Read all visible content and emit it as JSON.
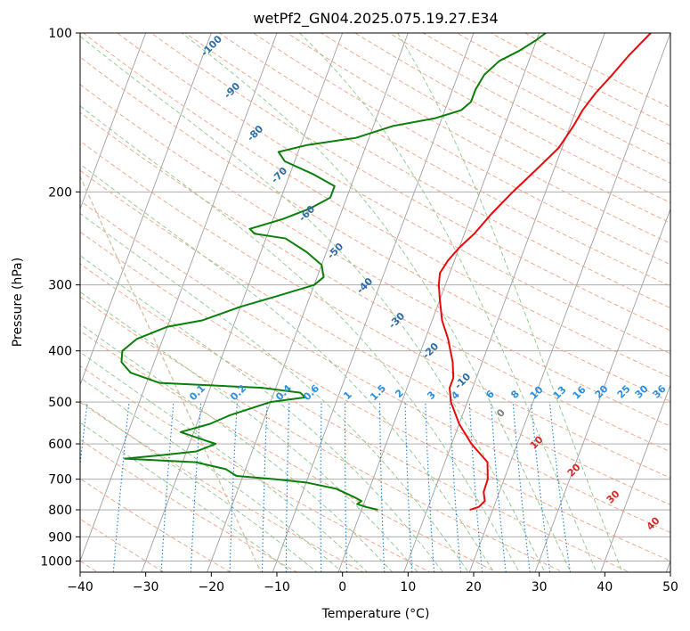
{
  "chart_data": {
    "type": "line",
    "diagram": "skew-t log-p",
    "title": "wetPf2_GN04.2025.075.19.27.E34",
    "xlabel": "Temperature (°C)",
    "ylabel": "Pressure (hPa)",
    "xlim": [
      -40,
      50
    ],
    "ylim": [
      1050,
      100
    ],
    "y_scale": "log",
    "grid": true,
    "x_ticks": [
      -40,
      -30,
      -20,
      -10,
      0,
      10,
      20,
      30,
      40,
      50
    ],
    "y_ticks": [
      1000,
      900,
      800,
      700,
      600,
      500,
      400,
      300,
      200,
      100
    ],
    "colors": {
      "temperature": "#e8090a",
      "dewpoint": "#0a7f0a",
      "isotherm": "#a0a0a0",
      "dry_adiabat": "#f4a080",
      "moist_adiabat": "#8cc88c",
      "mixing_ratio": "#1e7fd8",
      "mixing_label": "#2b8fe0",
      "dry_label": "#2b6ea8",
      "moist_label_pos": "#d42a2a",
      "moist_label_zero": "#808080",
      "brown_curve": "#d9c2a8"
    },
    "annotations": {
      "dry_adiabats": [
        "-100",
        "-90",
        "-80",
        "-70",
        "-60",
        "-50",
        "-40",
        "-30",
        "-20",
        "-10"
      ],
      "moist_adiabats": [
        "0",
        "10",
        "20",
        "30",
        "40"
      ],
      "mixing_ratios": [
        "0.1",
        "0.2",
        "0.4",
        "0.6",
        "1",
        "1.5",
        "2",
        "3",
        "4",
        "6",
        "8",
        "10",
        "13",
        "16",
        "20",
        "25",
        "30",
        "36"
      ]
    },
    "series": [
      {
        "key": "temperature",
        "points": [
          [
            800,
            16.5
          ],
          [
            790,
            17.7
          ],
          [
            770,
            18.3
          ],
          [
            740,
            17.6
          ],
          [
            700,
            17.5
          ],
          [
            650,
            16.5
          ],
          [
            600,
            13.0
          ],
          [
            550,
            10.0
          ],
          [
            500,
            7.5
          ],
          [
            470,
            6.5
          ],
          [
            450,
            6.5
          ],
          [
            420,
            5.5
          ],
          [
            380,
            3.5
          ],
          [
            350,
            1.5
          ],
          [
            320,
            0.0
          ],
          [
            300,
            -1.0
          ],
          [
            285,
            -1.5
          ],
          [
            270,
            -1.0
          ],
          [
            255,
            0.0
          ],
          [
            240,
            1.5
          ],
          [
            220,
            3.0
          ],
          [
            200,
            5.0
          ],
          [
            180,
            7.5
          ],
          [
            165,
            9.5
          ],
          [
            150,
            10.5
          ],
          [
            140,
            11.0
          ],
          [
            130,
            12.0
          ],
          [
            120,
            13.5
          ],
          [
            110,
            15.0
          ],
          [
            100,
            17.0
          ]
        ]
      },
      {
        "key": "dewpoint",
        "points": [
          [
            800,
            2.5
          ],
          [
            790,
            0.5
          ],
          [
            780,
            -1.0
          ],
          [
            770,
            -0.5
          ],
          [
            760,
            -1.5
          ],
          [
            730,
            -5.0
          ],
          [
            710,
            -10.0
          ],
          [
            700,
            -15.0
          ],
          [
            690,
            -21.0
          ],
          [
            670,
            -23.0
          ],
          [
            650,
            -28.0
          ],
          [
            640,
            -39.0
          ],
          [
            630,
            -33.5
          ],
          [
            620,
            -28.5
          ],
          [
            600,
            -26.0
          ],
          [
            590,
            -28.0
          ],
          [
            570,
            -32.0
          ],
          [
            550,
            -28.0
          ],
          [
            530,
            -25.5
          ],
          [
            500,
            -20.0
          ],
          [
            490,
            -15.0
          ],
          [
            480,
            -16.0
          ],
          [
            470,
            -22.0
          ],
          [
            460,
            -38.0
          ],
          [
            440,
            -43.0
          ],
          [
            420,
            -45.0
          ],
          [
            400,
            -45.5
          ],
          [
            380,
            -44.0
          ],
          [
            360,
            -40.0
          ],
          [
            350,
            -35.0
          ],
          [
            330,
            -30.0
          ],
          [
            315,
            -25.0
          ],
          [
            300,
            -20.0
          ],
          [
            290,
            -19.0
          ],
          [
            275,
            -20.0
          ],
          [
            260,
            -23.0
          ],
          [
            245,
            -27.0
          ],
          [
            240,
            -32.0
          ],
          [
            235,
            -33.0
          ],
          [
            225,
            -28.5
          ],
          [
            215,
            -25.0
          ],
          [
            205,
            -22.5
          ],
          [
            195,
            -22.5
          ],
          [
            185,
            -26.5
          ],
          [
            175,
            -31.5
          ],
          [
            168,
            -33.0
          ],
          [
            163,
            -29.0
          ],
          [
            158,
            -22.0
          ],
          [
            150,
            -17.0
          ],
          [
            145,
            -11.0
          ],
          [
            140,
            -7.5
          ],
          [
            135,
            -6.5
          ],
          [
            128,
            -6.5
          ],
          [
            120,
            -6.0
          ],
          [
            113,
            -4.5
          ],
          [
            108,
            -2.0
          ],
          [
            103,
            0.0
          ],
          [
            100,
            1.0
          ]
        ]
      }
    ]
  }
}
